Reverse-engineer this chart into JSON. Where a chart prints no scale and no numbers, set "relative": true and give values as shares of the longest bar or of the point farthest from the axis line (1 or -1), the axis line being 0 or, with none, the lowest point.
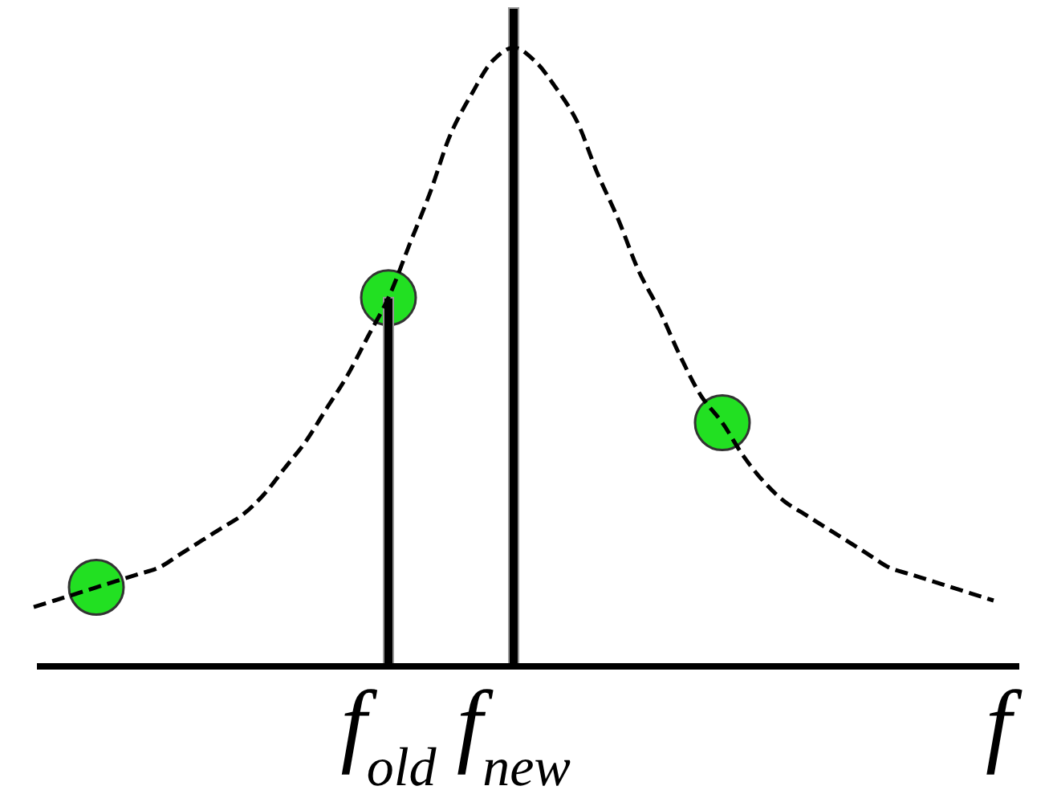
{
  "chart_data": {
    "type": "line",
    "relative": true,
    "xlabel": "f",
    "line_style": "dashed",
    "categories": [
      null,
      null,
      null,
      null,
      null,
      null,
      null,
      null,
      null,
      null,
      null,
      null,
      null,
      null,
      null,
      null,
      null,
      "f$_{old}$",
      null,
      null,
      null,
      null,
      null,
      "f$_{new}$",
      null,
      null,
      null,
      null,
      null,
      null,
      null,
      null,
      null,
      null,
      null,
      null,
      null,
      null,
      null,
      null,
      null,
      null,
      null,
      null,
      null,
      null,
      null
    ],
    "series": [
      {
        "color": "#000000",
        "values": [
          0.09,
          0.1,
          0.11,
          0.12,
          0.13,
          0.14,
          0.15,
          0.17,
          0.19,
          0.21,
          0.23,
          0.26,
          0.3,
          0.34,
          0.39,
          0.44,
          0.5,
          0.56,
          0.64,
          0.72,
          0.81,
          0.87,
          0.92,
          0.94,
          0.92,
          0.88,
          0.83,
          0.75,
          0.68,
          0.6,
          0.54,
          0.47,
          0.41,
          0.37,
          0.32,
          0.28,
          0.25,
          0.23,
          0.21,
          0.19,
          0.17,
          0.15,
          0.14,
          0.13,
          0.12,
          0.11,
          0.1
        ]
      },
      {
        "type": "scatter",
        "color": "#22e022",
        "marker": "circle",
        "values": [
          null,
          null,
          null,
          0.12,
          null,
          null,
          null,
          null,
          null,
          null,
          null,
          null,
          null,
          null,
          null,
          null,
          null,
          0.56,
          null,
          null,
          null,
          null,
          null,
          null,
          null,
          null,
          null,
          null,
          null,
          null,
          null,
          null,
          null,
          0.37,
          null,
          null,
          null,
          null,
          null,
          null,
          null,
          null,
          null,
          null,
          null,
          null,
          null
        ]
      },
      {
        "type": "bar",
        "color": "#000000",
        "values": [
          null,
          null,
          null,
          null,
          null,
          null,
          null,
          null,
          null,
          null,
          null,
          null,
          null,
          null,
          null,
          null,
          null,
          0.56,
          null,
          null,
          null,
          null,
          null,
          1,
          null,
          null,
          null,
          null,
          null,
          null,
          null,
          null,
          null,
          null,
          null,
          null,
          null,
          null,
          null,
          null,
          null,
          null,
          null,
          null,
          null,
          null,
          null
        ]
      }
    ]
  }
}
